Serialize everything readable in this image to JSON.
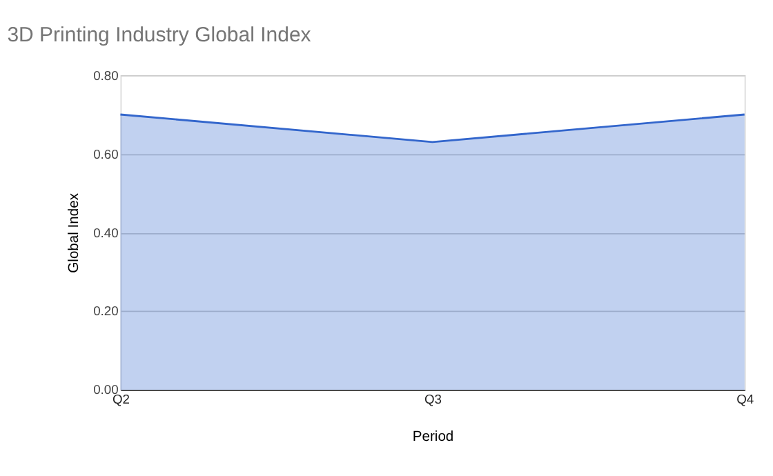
{
  "chart_data": {
    "type": "area",
    "title": "3D Printing Industry Global Index",
    "xlabel": "Period",
    "ylabel": "Global Index",
    "categories": [
      "Q2",
      "Q3",
      "Q4"
    ],
    "series": [
      {
        "color": "#3366cc",
        "values": [
          0.7,
          0.63,
          0.7
        ]
      }
    ],
    "ylim": [
      0,
      0.8
    ],
    "yticks": [
      {
        "value": 0,
        "label": "0.00"
      },
      {
        "value": 0.2,
        "label": "0.20"
      },
      {
        "value": 0.4,
        "label": "0.40"
      },
      {
        "value": 0.6,
        "label": "0.60"
      },
      {
        "value": 0.8,
        "label": "0.80"
      }
    ],
    "grid": "y"
  }
}
